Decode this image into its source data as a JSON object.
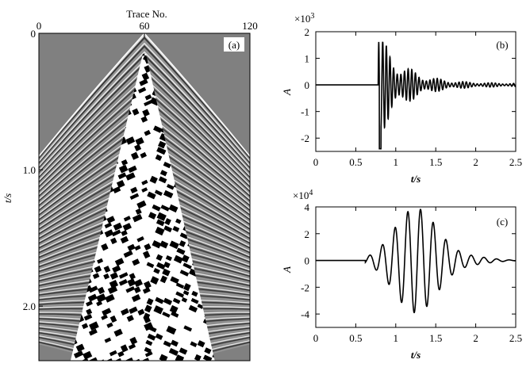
{
  "chart_data": [
    {
      "id": "a",
      "type": "heatmap",
      "panel_label": "(a)",
      "xlabel": "Trace No.",
      "ylabel": "t/s",
      "x_ticks": [
        "0",
        "60",
        "120"
      ],
      "x_tick_values": [
        0,
        60,
        120
      ],
      "y_ticks": [
        "0",
        "1.0",
        "2.0"
      ],
      "y_tick_values": [
        0,
        1.0,
        2.0
      ],
      "xlim": [
        0,
        120
      ],
      "ylim": [
        0,
        2.4
      ],
      "y_inverted": true,
      "x_axis_position": "top",
      "colormap": "grayscale",
      "source_trace": 60,
      "first_arrival_time_at_source": 0.0,
      "first_arrival_time_at_edges": 0.9,
      "surface_wave_time_at_source": 0.15,
      "surface_wave_time_at_edges": 2.4
    },
    {
      "id": "b",
      "type": "line",
      "panel_label": "(b)",
      "xlabel": "t/s",
      "ylabel": "A",
      "scale_label": "×10",
      "scale_exponent": "3",
      "xlim": [
        0,
        2.5
      ],
      "ylim": [
        -2.5,
        2
      ],
      "x_ticks": [
        0,
        0.5,
        1,
        1.5,
        2,
        2.5
      ],
      "y_ticks": [
        2,
        1,
        0,
        -1,
        -2
      ],
      "onset_time": 0.78,
      "peak_max": 1.6,
      "peak_min": -2.4
    },
    {
      "id": "c",
      "type": "line",
      "panel_label": "(c)",
      "xlabel": "t/s",
      "ylabel": "A",
      "scale_label": "×10",
      "scale_exponent": "4",
      "xlim": [
        0,
        2.5
      ],
      "ylim": [
        -5,
        4
      ],
      "x_ticks": [
        0,
        0.5,
        1,
        1.5,
        2,
        2.5
      ],
      "y_ticks": [
        4,
        2,
        0,
        -2,
        -4
      ],
      "onset_time": 0.62,
      "peak_max": 3.8,
      "peak_min": -4.1
    }
  ]
}
